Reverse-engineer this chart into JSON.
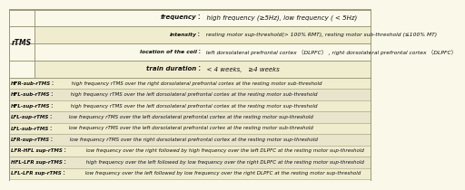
{
  "bg_color": "#faf8e8",
  "header_bg": "#f0edcf",
  "abbrev_bg_even": "#f0edcf",
  "abbrev_bg_odd": "#e8e5cc",
  "border_color": "#999977",
  "text_color": "#111111",
  "left_label": "rTMS",
  "header_rows": [
    {
      "bold": "frequency：",
      "rest": "  high frequency (≥5Hz), low frequency ( < 5Hz)"
    },
    {
      "bold": "intensity：",
      "rest": "  resting motor sup-threshold(> 100% RMT), resting motor sub-threshold (≤100% MT)"
    },
    {
      "bold": "location of the coil：",
      "rest": "  left dorsolateral prefrontal cortex （DLPFC） , right dorsolateral prefrontal cortex （DLPFC）"
    },
    {
      "bold": "train duration：",
      "rest": "  < 4 weeks,   ≥4 weeks"
    }
  ],
  "abbrev_rows": [
    {
      "bold": "HFR-sub-rTMS：",
      "rest": " high frequency rTMS over the right dorsolateral prefrontal cortex at the resting motor sub-threshold"
    },
    {
      "bold": "HFL-sub-rTMS：",
      "rest": " high frequency rTMS over the left dorsolateral prefrontal cortex at the resting motor sub-threshold"
    },
    {
      "bold": "HFL-sup-rTMS：",
      "rest": " high frequency rTMS over the left dorsolateral prefrontal cortex at the resting motor sup-threshold"
    },
    {
      "bold": "LFL-sup-rTMS：",
      "rest": " low frequency rTMS over the left dorsolateral prefrontal cortex at the resting motor sup-threshold"
    },
    {
      "bold": "LFL-sub-rTMS：",
      "rest": " low frequency rTMS over the left dorsolateral prefrontal cortex at the resting motor sub-threshold"
    },
    {
      "bold": "LFR-sup-rTMS：",
      "rest": " low frequency rTMS over the right dorsolateral prefrontal cortex at the resting motor sup-threshold"
    },
    {
      "bold": "LFR-HFL sup-rTMS：",
      "rest": " low frequency over the right followed by high frequency over the left DLPFC at the resting motor sup-threshold"
    },
    {
      "bold": "HFL-LFR sup-rTMS：",
      "rest": " high frequency over the left followed by low frequency over the right DLPFC at the resting motor sup-threshold"
    },
    {
      "bold": "LFL-LFR sup-rTMS：",
      "rest": " low frequency over the left followed by low frequency over the right DLPFC at the resting motor sup-threshold"
    }
  ]
}
